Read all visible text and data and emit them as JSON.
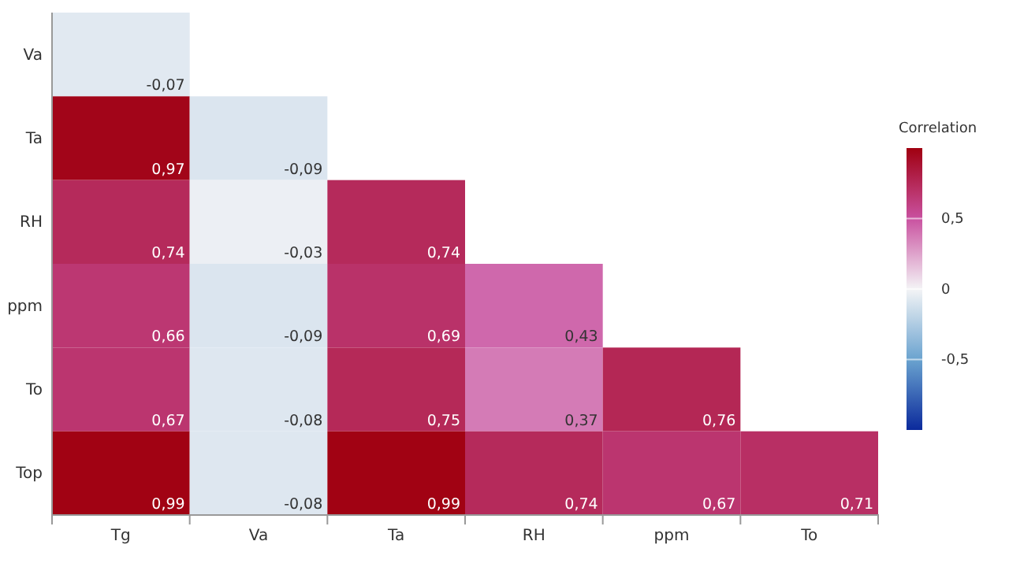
{
  "chart_data": {
    "type": "heatmap",
    "clabel": "Correlation",
    "categories": [
      "Tg",
      "Va",
      "Ta",
      "RH",
      "ppm",
      "To"
    ],
    "y_categories": [
      "Va",
      "Ta",
      "RH",
      "ppm",
      "To",
      "Top"
    ],
    "cells": [
      [
        -0.07,
        null,
        null,
        null,
        null,
        null
      ],
      [
        0.97,
        -0.09,
        null,
        null,
        null,
        null
      ],
      [
        0.74,
        -0.03,
        0.74,
        null,
        null,
        null
      ],
      [
        0.66,
        -0.09,
        0.69,
        0.43,
        null,
        null
      ],
      [
        0.67,
        -0.08,
        0.75,
        0.37,
        0.76,
        null
      ],
      [
        0.99,
        -0.08,
        0.99,
        0.74,
        0.67,
        0.71
      ]
    ],
    "cell_labels": [
      [
        "-0,07",
        null,
        null,
        null,
        null,
        null
      ],
      [
        "0,97",
        "-0,09",
        null,
        null,
        null,
        null
      ],
      [
        "0,74",
        "-0,03",
        "0,74",
        null,
        null,
        null
      ],
      [
        "0,66",
        "-0,09",
        "0,69",
        "0,43",
        null,
        null
      ],
      [
        "0,67",
        "-0,08",
        "0,75",
        "0,37",
        "0,76",
        null
      ],
      [
        "0,99",
        "-0,08",
        "0,99",
        "0,74",
        "0,67",
        "0,71"
      ]
    ],
    "clim": [
      -1,
      1
    ],
    "cticks": [
      {
        "value": 0.5,
        "label": "0,5"
      },
      0,
      {
        "value": -0.5,
        "label": "-0,5"
      }
    ]
  }
}
